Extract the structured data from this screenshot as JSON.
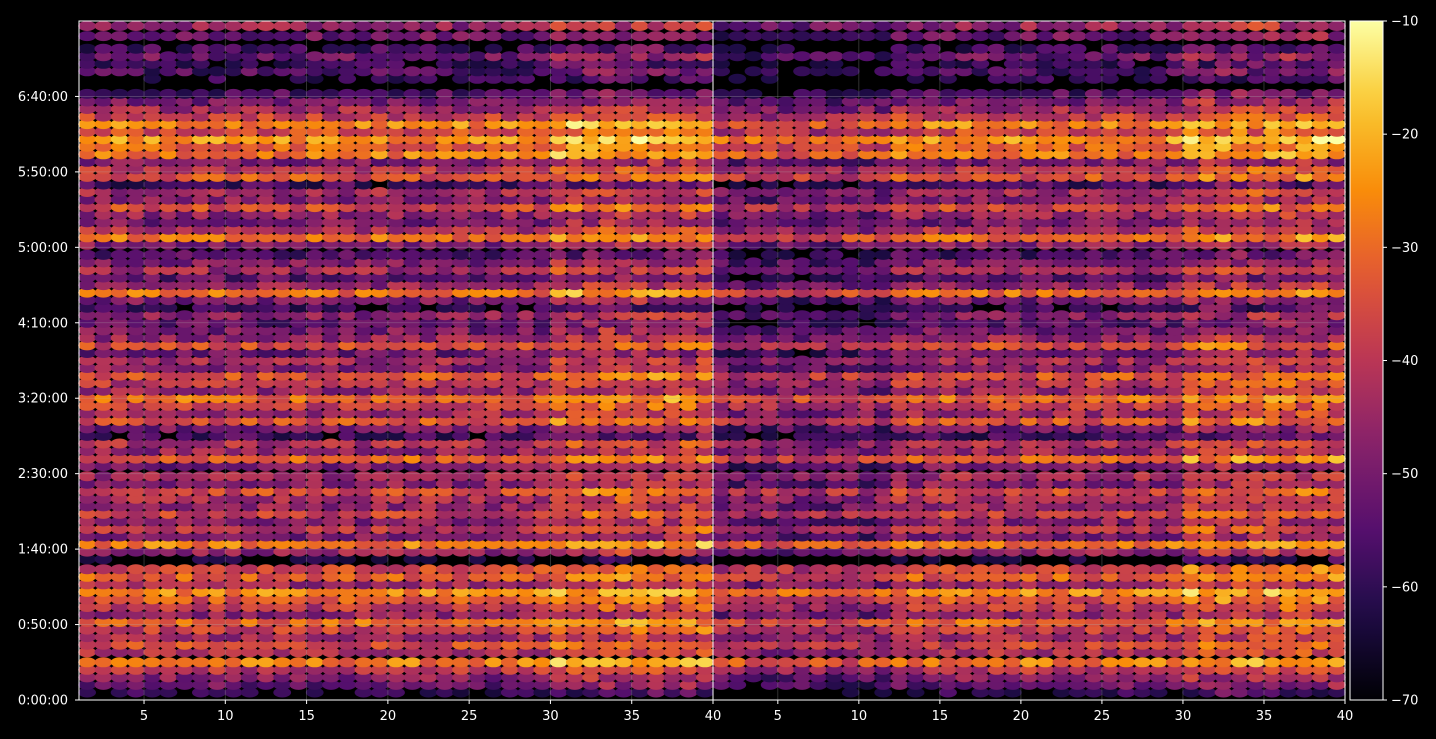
{
  "chart_data": {
    "type": "heatmap",
    "title": "",
    "xlabel": "",
    "ylabel": "",
    "panels": [
      {
        "name": "",
        "xlim": [
          1,
          40
        ],
        "x_ticks": [
          5,
          10,
          15,
          20,
          25,
          30,
          35,
          40
        ],
        "x_tick_labels": [
          "5",
          "10",
          "15",
          "20",
          "25",
          "30",
          "35",
          "40"
        ]
      },
      {
        "name": "",
        "xlim": [
          1,
          40
        ],
        "x_ticks": [
          5,
          10,
          15,
          20,
          25,
          30,
          35,
          40
        ],
        "x_tick_labels": [
          "5",
          "10",
          "15",
          "20",
          "25",
          "30",
          "35",
          "40"
        ]
      }
    ],
    "y_axis": {
      "unit": "seconds",
      "ylim": [
        0,
        27000
      ],
      "ticks": [
        0,
        3000,
        6000,
        9000,
        12000,
        15000,
        18000,
        21000,
        24000
      ],
      "tick_labels": [
        "0:00:00",
        "0:50:00",
        "1:40:00",
        "2:30:00",
        "3:20:00",
        "4:10:00",
        "5:00:00",
        "5:50:00",
        "6:40:00"
      ]
    },
    "colorbar": {
      "colormap": "inferno",
      "vmin": -70,
      "vmax": -10,
      "ticks": [
        -70,
        -60,
        -50,
        -40,
        -30,
        -20,
        -10
      ],
      "tick_labels": [
        "−70",
        "−60",
        "−50",
        "−40",
        "−30",
        "−20",
        "−10"
      ]
    },
    "bands": [
      {
        "y": 300,
        "level": -62
      },
      {
        "y": 600,
        "level": -52
      },
      {
        "y": 900,
        "level": -48
      },
      {
        "y": 1200,
        "level": -40
      },
      {
        "y": 1500,
        "level": -28
      },
      {
        "y": 1900,
        "level": -42
      },
      {
        "y": 2200,
        "level": -36
      },
      {
        "y": 2500,
        "level": -44
      },
      {
        "y": 2800,
        "level": -38
      },
      {
        "y": 3100,
        "level": -30
      },
      {
        "y": 3400,
        "level": -46
      },
      {
        "y": 3700,
        "level": -40
      },
      {
        "y": 4000,
        "level": -34
      },
      {
        "y": 4300,
        "level": -26
      },
      {
        "y": 4600,
        "level": -44
      },
      {
        "y": 4900,
        "level": -32
      },
      {
        "y": 5200,
        "level": -36
      },
      {
        "y": 5600,
        "level": -66
      },
      {
        "y": 5900,
        "level": -46
      },
      {
        "y": 6200,
        "level": -28
      },
      {
        "y": 6500,
        "level": -50
      },
      {
        "y": 6800,
        "level": -40
      },
      {
        "y": 7100,
        "level": -48
      },
      {
        "y": 7400,
        "level": -38
      },
      {
        "y": 7700,
        "level": -46
      },
      {
        "y": 8000,
        "level": -42
      },
      {
        "y": 8300,
        "level": -36
      },
      {
        "y": 8600,
        "level": -48
      },
      {
        "y": 8900,
        "level": -44
      },
      {
        "y": 9300,
        "level": -50
      },
      {
        "y": 9600,
        "level": -32
      },
      {
        "y": 9900,
        "level": -46
      },
      {
        "y": 10200,
        "level": -42
      },
      {
        "y": 10500,
        "level": -58
      },
      {
        "y": 10800,
        "level": -50
      },
      {
        "y": 11100,
        "level": -34
      },
      {
        "y": 11400,
        "level": -44
      },
      {
        "y": 11700,
        "level": -38
      },
      {
        "y": 12000,
        "level": -30
      },
      {
        "y": 12300,
        "level": -46
      },
      {
        "y": 12600,
        "level": -40
      },
      {
        "y": 12900,
        "level": -34
      },
      {
        "y": 13200,
        "level": -48
      },
      {
        "y": 13500,
        "level": -44
      },
      {
        "y": 13800,
        "level": -52
      },
      {
        "y": 14100,
        "level": -36
      },
      {
        "y": 14400,
        "level": -46
      },
      {
        "y": 14700,
        "level": -50
      },
      {
        "y": 15000,
        "level": -54
      },
      {
        "y": 15300,
        "level": -48
      },
      {
        "y": 15600,
        "level": -60
      },
      {
        "y": 15900,
        "level": -50
      },
      {
        "y": 16200,
        "level": -30
      },
      {
        "y": 16500,
        "level": -46
      },
      {
        "y": 16800,
        "level": -54
      },
      {
        "y": 17100,
        "level": -44
      },
      {
        "y": 17400,
        "level": -50
      },
      {
        "y": 17700,
        "level": -56
      },
      {
        "y": 18100,
        "level": -48
      },
      {
        "y": 18400,
        "level": -30
      },
      {
        "y": 18700,
        "level": -42
      },
      {
        "y": 19000,
        "level": -50
      },
      {
        "y": 19300,
        "level": -46
      },
      {
        "y": 19600,
        "level": -36
      },
      {
        "y": 19900,
        "level": -48
      },
      {
        "y": 20200,
        "level": -44
      },
      {
        "y": 20500,
        "level": -58
      },
      {
        "y": 20800,
        "level": -34
      },
      {
        "y": 21100,
        "level": -40
      },
      {
        "y": 21400,
        "level": -50
      },
      {
        "y": 21700,
        "level": -28
      },
      {
        "y": 22000,
        "level": -32
      },
      {
        "y": 22300,
        "level": -24
      },
      {
        "y": 22600,
        "level": -36
      },
      {
        "y": 22900,
        "level": -26
      },
      {
        "y": 23200,
        "level": -38
      },
      {
        "y": 23500,
        "level": -44
      },
      {
        "y": 23800,
        "level": -50
      },
      {
        "y": 24100,
        "level": -56
      },
      {
        "y": 24700,
        "level": -62
      },
      {
        "y": 25000,
        "level": -56
      },
      {
        "y": 25300,
        "level": -60
      },
      {
        "y": 25600,
        "level": -52
      },
      {
        "y": 25900,
        "level": -58
      },
      {
        "y": 26400,
        "level": -52
      },
      {
        "y": 26800,
        "level": -46
      }
    ]
  }
}
